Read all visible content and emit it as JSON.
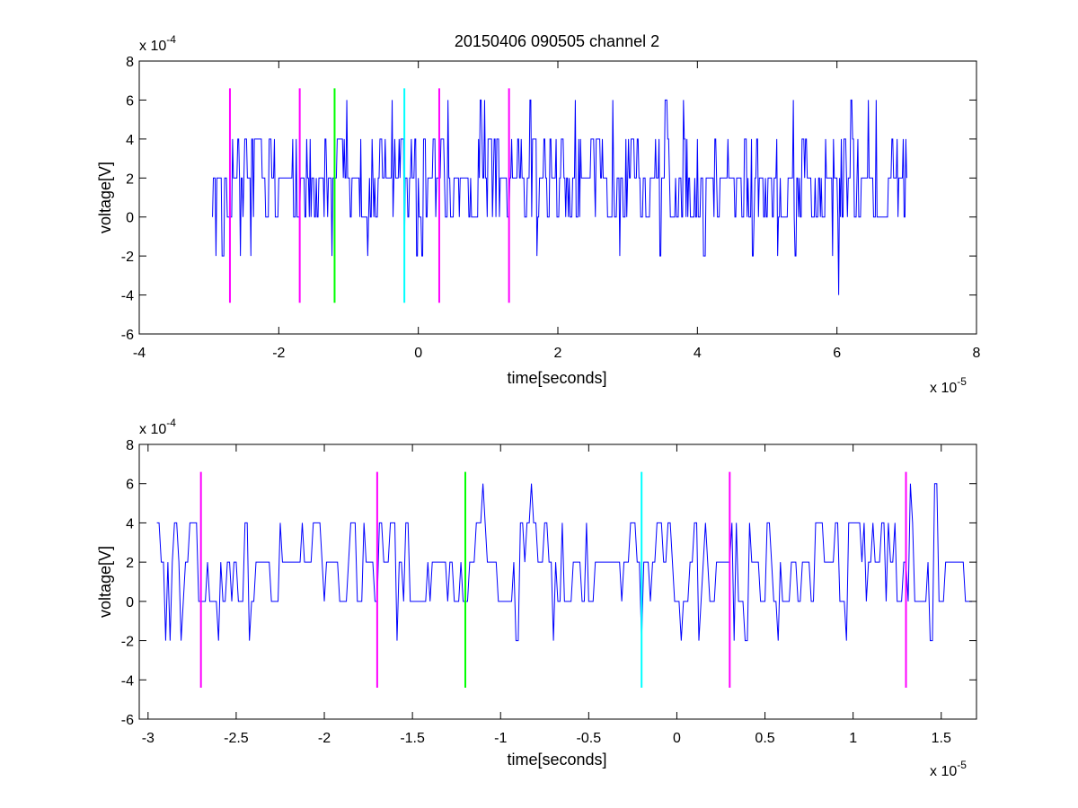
{
  "chart_data": [
    {
      "type": "line",
      "title": "20150406 090505 channel 2",
      "xlabel": "time[seconds]",
      "ylabel": "voltage[V]",
      "x_multiplier": "x 10",
      "x_exponent": "-5",
      "y_multiplier": "x 10",
      "y_exponent": "-4",
      "xlim": [
        -4,
        8
      ],
      "ylim": [
        -6,
        8
      ],
      "x_ticks": [
        -4,
        -2,
        0,
        2,
        4,
        6,
        8
      ],
      "x_tick_labels": [
        "-4",
        "-2",
        "0",
        "2",
        "4",
        "6",
        "8"
      ],
      "y_ticks": [
        -6,
        -4,
        -2,
        0,
        2,
        4,
        6,
        8
      ],
      "y_tick_labels": [
        "-6",
        "-4",
        "-2",
        "0",
        "2",
        "4",
        "6",
        "8"
      ],
      "grid": false,
      "series": [
        {
          "color": "#0000ff",
          "x_range": [
            -2.95,
            7.0
          ],
          "level_weights": [
            [
              0,
              0.3
            ],
            [
              2,
              0.45
            ],
            [
              4,
              0.2
            ],
            [
              -2,
              0.03
            ],
            [
              6,
              0.02
            ]
          ],
          "spikes": [
            [
              -2.9,
              -2
            ],
            [
              -2.55,
              -2
            ],
            [
              -2.4,
              -2
            ],
            [
              -1.02,
              6
            ],
            [
              -0.72,
              -2
            ],
            [
              -0.2,
              -2
            ],
            [
              1.7,
              -2
            ],
            [
              2.25,
              6
            ],
            [
              3.8,
              6
            ],
            [
              6.02,
              -4
            ],
            [
              6.45,
              6
            ]
          ]
        }
      ],
      "markers": [
        {
          "x": -2.7,
          "color": "#ff00ff",
          "y_range": [
            -4.4,
            6.6
          ]
        },
        {
          "x": -1.7,
          "color": "#ff00ff",
          "y_range": [
            -4.4,
            6.6
          ]
        },
        {
          "x": -1.2,
          "color": "#00ff00",
          "y_range": [
            -4.4,
            6.6
          ]
        },
        {
          "x": -0.2,
          "color": "#00ffff",
          "y_range": [
            -4.4,
            6.6
          ]
        },
        {
          "x": 0.3,
          "color": "#ff00ff",
          "y_range": [
            -4.4,
            6.6
          ]
        },
        {
          "x": 1.3,
          "color": "#ff00ff",
          "y_range": [
            -4.4,
            6.6
          ]
        }
      ]
    },
    {
      "type": "line",
      "title": "",
      "xlabel": "time[seconds]",
      "ylabel": "voltage[V]",
      "x_multiplier": "x 10",
      "x_exponent": "-5",
      "y_multiplier": "x 10",
      "y_exponent": "-4",
      "xlim": [
        -3.05,
        1.7
      ],
      "ylim": [
        -6,
        8
      ],
      "x_ticks": [
        -3,
        -2.5,
        -2,
        -1.5,
        -1,
        -0.5,
        0,
        0.5,
        1,
        1.5
      ],
      "x_tick_labels": [
        "-3",
        "-2.5",
        "-2",
        "-1.5",
        "-1",
        "-0.5",
        "0",
        "0.5",
        "1",
        "1.5"
      ],
      "y_ticks": [
        -6,
        -4,
        -2,
        0,
        2,
        4,
        6,
        8
      ],
      "y_tick_labels": [
        "-6",
        "-4",
        "-2",
        "0",
        "2",
        "4",
        "6",
        "8"
      ],
      "grid": false,
      "series": [
        {
          "color": "#0000ff",
          "x_range": [
            -2.95,
            1.68
          ],
          "level_weights": [
            [
              0,
              0.28
            ],
            [
              2,
              0.46
            ],
            [
              4,
              0.22
            ],
            [
              -2,
              0.03
            ],
            [
              6,
              0.01
            ]
          ],
          "spikes": [
            [
              -2.9,
              -2
            ],
            [
              -2.88,
              -2
            ],
            [
              -2.6,
              -2
            ],
            [
              -2.42,
              -2
            ],
            [
              -1.1,
              6
            ],
            [
              -0.7,
              -2
            ],
            [
              -0.2,
              -2
            ],
            [
              0.12,
              -2
            ],
            [
              0.32,
              -2
            ],
            [
              1.32,
              6
            ]
          ]
        }
      ],
      "markers": [
        {
          "x": -2.7,
          "color": "#ff00ff",
          "y_range": [
            -4.4,
            6.6
          ]
        },
        {
          "x": -1.7,
          "color": "#ff00ff",
          "y_range": [
            -4.4,
            6.6
          ]
        },
        {
          "x": -1.2,
          "color": "#00ff00",
          "y_range": [
            -4.4,
            6.6
          ]
        },
        {
          "x": -0.2,
          "color": "#00ffff",
          "y_range": [
            -4.4,
            6.6
          ]
        },
        {
          "x": 0.3,
          "color": "#ff00ff",
          "y_range": [
            -4.4,
            6.6
          ]
        },
        {
          "x": 1.3,
          "color": "#ff00ff",
          "y_range": [
            -4.4,
            6.6
          ]
        }
      ]
    }
  ]
}
